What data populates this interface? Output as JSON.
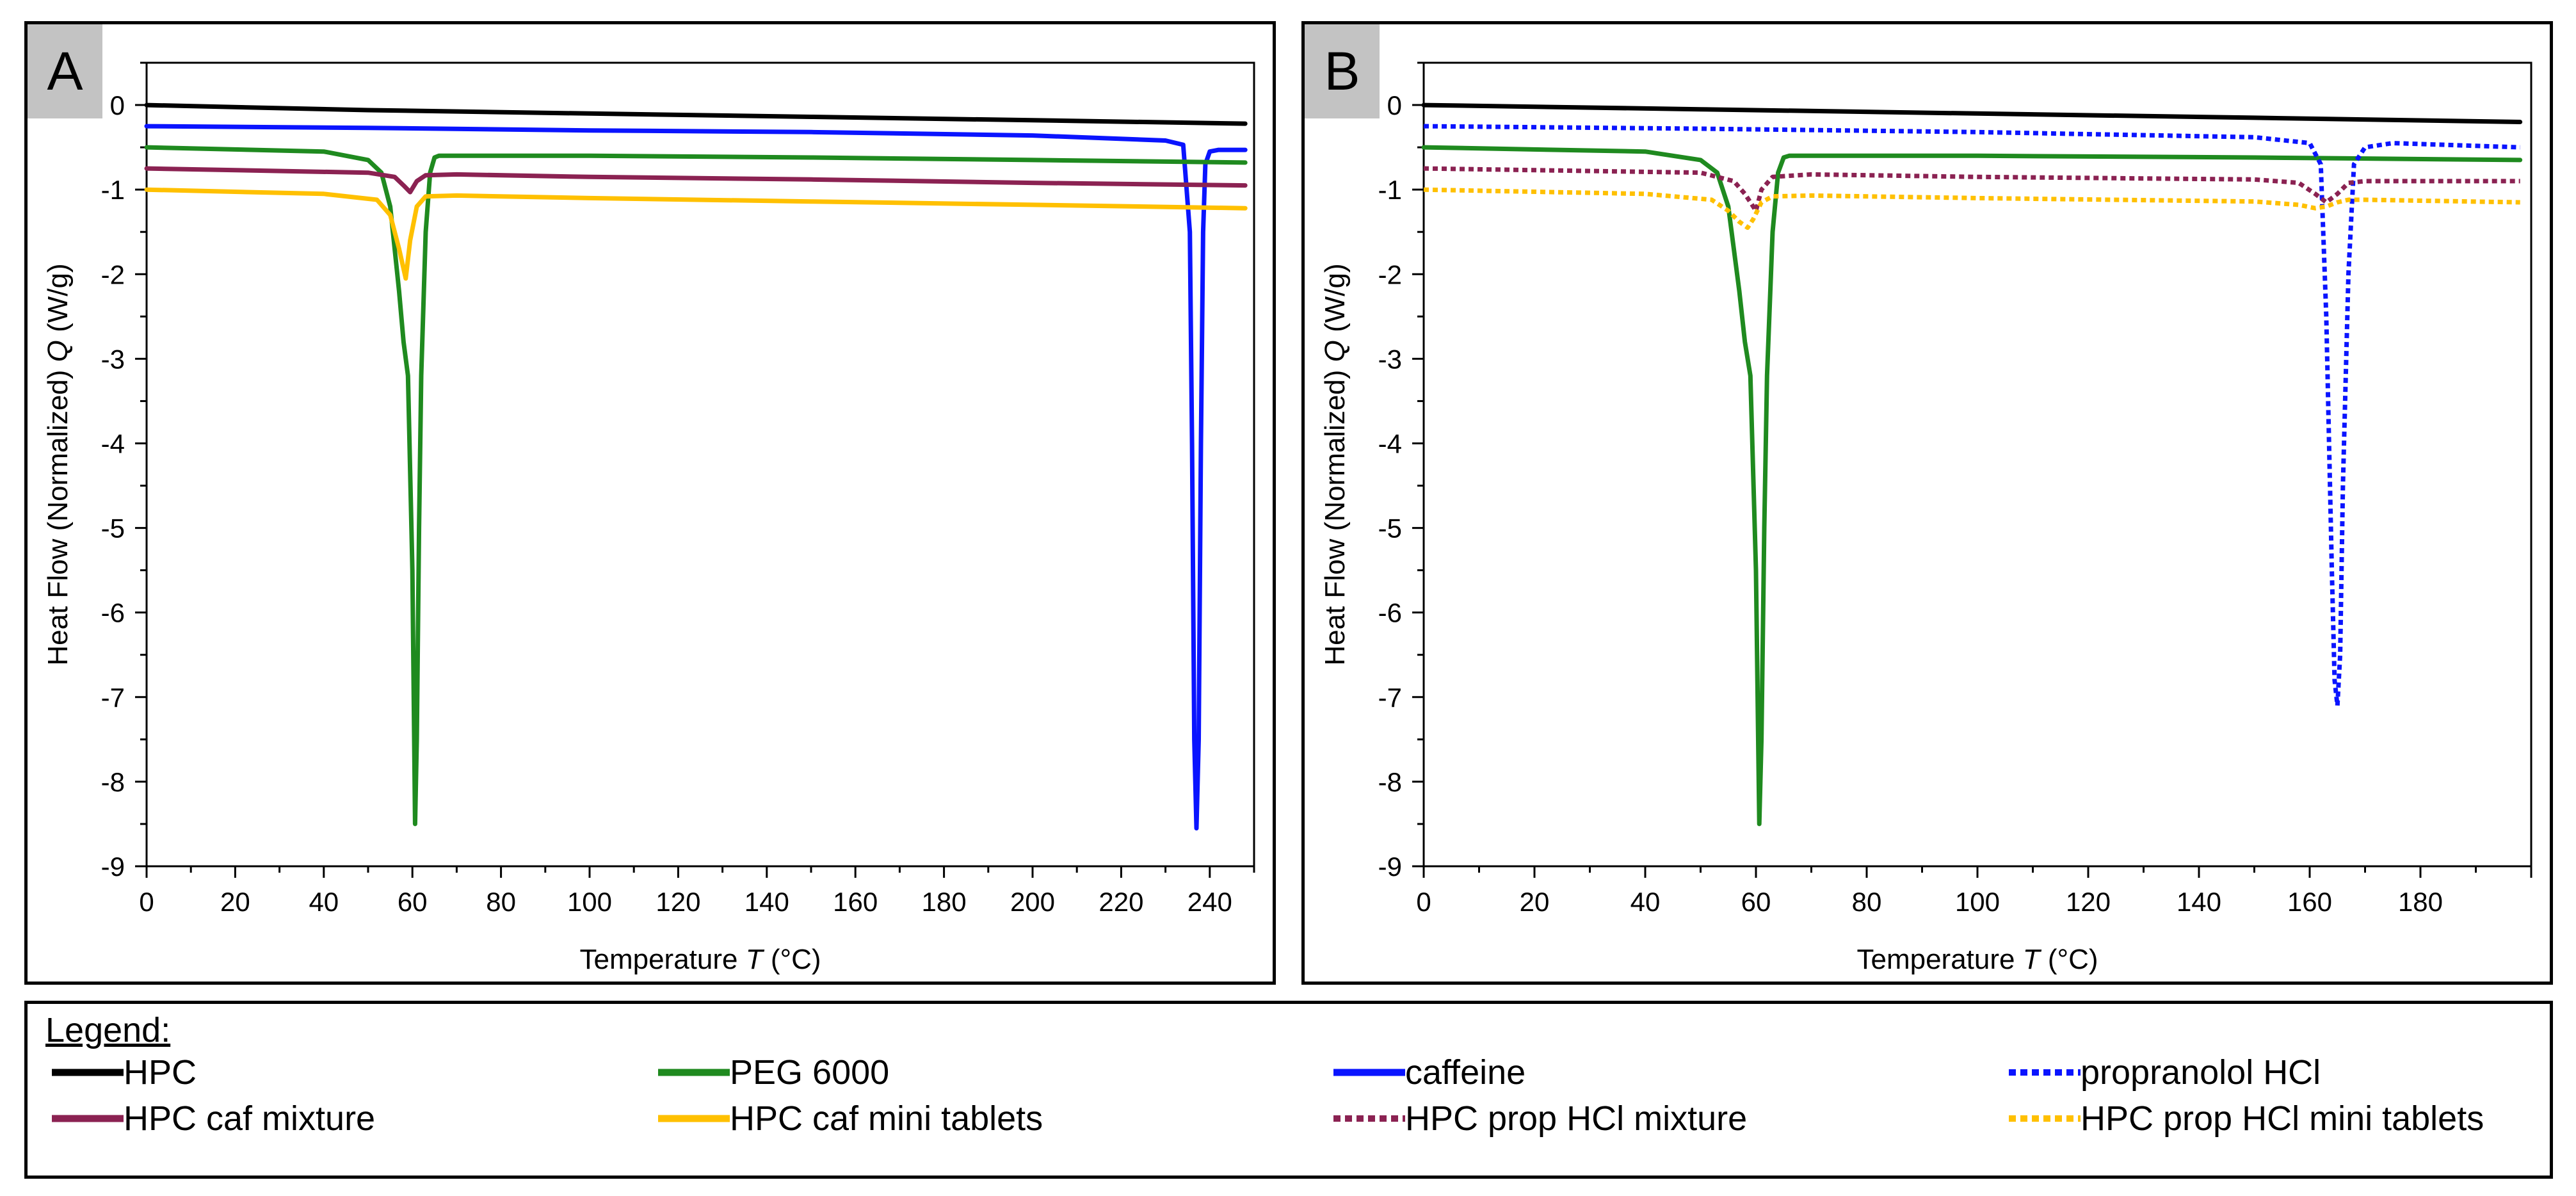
{
  "legend": {
    "title": "Legend:",
    "items": [
      {
        "label": "HPC",
        "color": "#000000",
        "dash": "solid"
      },
      {
        "label": "PEG 6000",
        "color": "#1f8a1f",
        "dash": "solid"
      },
      {
        "label": "caffeine",
        "color": "#0a14ff",
        "dash": "solid"
      },
      {
        "label": "propranolol HCl",
        "color": "#0a14ff",
        "dash": "dotted"
      },
      {
        "label": "HPC caf mixture",
        "color": "#8b2252",
        "dash": "solid"
      },
      {
        "label": "HPC caf mini tablets",
        "color": "#ffc000",
        "dash": "solid"
      },
      {
        "label": "HPC prop HCl mixture",
        "color": "#8b2252",
        "dash": "dotted"
      },
      {
        "label": "HPC prop HCl mini tablets",
        "color": "#ffc000",
        "dash": "dotted"
      }
    ]
  },
  "chart_data": [
    {
      "panel": "A",
      "type": "line",
      "xlabel": "Temperature",
      "xsymbol": "T",
      "xunit": "(°C)",
      "ylabel": "Heat Flow (Normalized)",
      "ysymbol": "Q",
      "yunit": "(W/g)",
      "xlim": [
        0,
        250
      ],
      "ylim": [
        -9,
        0.5
      ],
      "xticks": [
        0,
        20,
        40,
        60,
        80,
        100,
        120,
        140,
        160,
        180,
        200,
        220,
        240
      ],
      "yticks": [
        0,
        -1,
        -2,
        -3,
        -4,
        -5,
        -6,
        -7,
        -8,
        -9
      ],
      "series": [
        {
          "name": "HPC",
          "color": "#000000",
          "dash": "solid",
          "x": [
            0,
            50,
            100,
            150,
            200,
            248
          ],
          "y": [
            0,
            -0.06,
            -0.1,
            -0.14,
            -0.18,
            -0.22
          ]
        },
        {
          "name": "caffeine",
          "color": "#0a14ff",
          "dash": "solid",
          "x": [
            0,
            50,
            100,
            150,
            200,
            230,
            234,
            235.5,
            236,
            236.5,
            237,
            237.5,
            238,
            238.5,
            239,
            240,
            242,
            248
          ],
          "y": [
            -0.25,
            -0.27,
            -0.3,
            -0.32,
            -0.36,
            -0.42,
            -0.47,
            -1.5,
            -4,
            -7.5,
            -8.55,
            -7.5,
            -4,
            -1.5,
            -0.7,
            -0.55,
            -0.53,
            -0.53
          ]
        },
        {
          "name": "PEG 6000",
          "color": "#1f8a1f",
          "dash": "solid",
          "x": [
            0,
            40,
            50,
            53,
            55,
            57,
            58,
            59,
            60,
            60.6,
            61,
            61.5,
            62,
            63,
            64,
            65,
            66,
            70,
            100,
            150,
            200,
            248
          ],
          "y": [
            -0.5,
            -0.55,
            -0.65,
            -0.8,
            -1.2,
            -2.2,
            -2.8,
            -3.2,
            -5.5,
            -8.5,
            -7.5,
            -5,
            -3.2,
            -1.5,
            -0.8,
            -0.62,
            -0.6,
            -0.6,
            -0.6,
            -0.62,
            -0.65,
            -0.68
          ]
        },
        {
          "name": "HPC caf mixture",
          "color": "#8b2252",
          "dash": "solid",
          "x": [
            0,
            50,
            56,
            58,
            59.5,
            61,
            63,
            70,
            100,
            150,
            200,
            248
          ],
          "y": [
            -0.75,
            -0.8,
            -0.85,
            -0.95,
            -1.03,
            -0.9,
            -0.83,
            -0.82,
            -0.85,
            -0.88,
            -0.92,
            -0.95
          ]
        },
        {
          "name": "HPC caf mini tablets",
          "color": "#ffc000",
          "dash": "solid",
          "x": [
            0,
            40,
            52,
            55,
            57,
            58.5,
            59.5,
            61,
            63,
            70,
            100,
            150,
            200,
            248
          ],
          "y": [
            -1.0,
            -1.05,
            -1.12,
            -1.3,
            -1.7,
            -2.05,
            -1.6,
            -1.2,
            -1.08,
            -1.07,
            -1.1,
            -1.14,
            -1.18,
            -1.22
          ]
        }
      ]
    },
    {
      "panel": "B",
      "type": "line",
      "xlabel": "Temperature",
      "xsymbol": "T",
      "xunit": "(°C)",
      "ylabel": "Heat Flow (Normalized)",
      "ysymbol": "Q",
      "yunit": "(W/g)",
      "xlim": [
        0,
        200
      ],
      "ylim": [
        -9,
        0.5
      ],
      "xticks": [
        0,
        20,
        40,
        60,
        80,
        100,
        120,
        140,
        160,
        180
      ],
      "yticks": [
        0,
        -1,
        -2,
        -3,
        -4,
        -5,
        -6,
        -7,
        -8,
        -9
      ],
      "series": [
        {
          "name": "HPC",
          "color": "#000000",
          "dash": "solid",
          "x": [
            0,
            50,
            100,
            150,
            198
          ],
          "y": [
            0,
            -0.05,
            -0.1,
            -0.15,
            -0.2
          ]
        },
        {
          "name": "PEG 6000",
          "color": "#1f8a1f",
          "dash": "solid",
          "x": [
            0,
            40,
            50,
            53,
            55,
            57,
            58,
            59,
            60,
            60.6,
            61,
            61.5,
            62,
            63,
            64,
            65,
            66,
            70,
            100,
            150,
            198
          ],
          "y": [
            -0.5,
            -0.55,
            -0.65,
            -0.8,
            -1.2,
            -2.2,
            -2.8,
            -3.2,
            -5.5,
            -8.5,
            -7.5,
            -5,
            -3.2,
            -1.5,
            -0.8,
            -0.62,
            -0.6,
            -0.6,
            -0.6,
            -0.62,
            -0.65
          ]
        },
        {
          "name": "propranolol HCl",
          "color": "#0a14ff",
          "dash": "dotted",
          "x": [
            0,
            50,
            100,
            150,
            160,
            162,
            163,
            164,
            164.5,
            165,
            165.5,
            166,
            167,
            168,
            170,
            175,
            198
          ],
          "y": [
            -0.25,
            -0.28,
            -0.32,
            -0.38,
            -0.45,
            -0.7,
            -2.5,
            -5.5,
            -6.8,
            -7.1,
            -6.5,
            -4.5,
            -2,
            -0.7,
            -0.5,
            -0.45,
            -0.5
          ]
        },
        {
          "name": "HPC prop HCl mixture",
          "color": "#8b2252",
          "dash": "dotted",
          "x": [
            0,
            50,
            56,
            58,
            60,
            61,
            63,
            70,
            100,
            150,
            158,
            161,
            163,
            165,
            167,
            170,
            198
          ],
          "y": [
            -0.75,
            -0.8,
            -0.9,
            -1.05,
            -1.25,
            -1.0,
            -0.85,
            -0.82,
            -0.85,
            -0.88,
            -0.92,
            -1.05,
            -1.15,
            -1.05,
            -0.92,
            -0.9,
            -0.9
          ]
        },
        {
          "name": "HPC prop HCl mini tablets",
          "color": "#ffc000",
          "dash": "dotted",
          "x": [
            0,
            40,
            52,
            55,
            57,
            58.5,
            59.5,
            61,
            63,
            70,
            100,
            150,
            158,
            161,
            163,
            165,
            167,
            170,
            198
          ],
          "y": [
            -1.0,
            -1.05,
            -1.12,
            -1.25,
            -1.38,
            -1.45,
            -1.35,
            -1.15,
            -1.08,
            -1.07,
            -1.1,
            -1.14,
            -1.18,
            -1.22,
            -1.2,
            -1.15,
            -1.12,
            -1.12,
            -1.15
          ]
        }
      ]
    }
  ]
}
